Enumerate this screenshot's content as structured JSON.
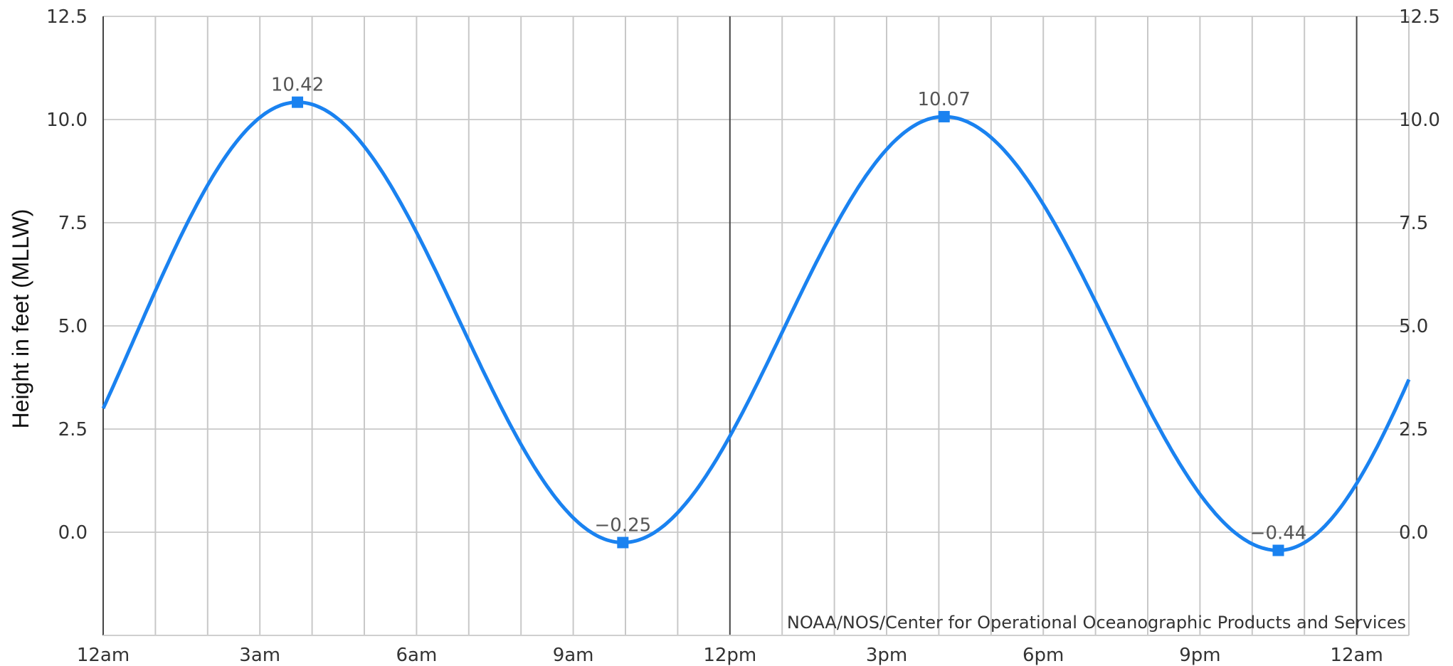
{
  "chart_data": {
    "type": "line",
    "ylabel": "Height in feet (MLLW)",
    "credit": "NOAA/NOS/Center for Operational Oceanographic Products and Services",
    "xlim_hours": [
      0,
      25
    ],
    "ylim": [
      -2.5,
      12.5
    ],
    "y_ticks": [
      0.0,
      2.5,
      5.0,
      7.5,
      10.0,
      12.5
    ],
    "y_tick_labels": [
      "0.0",
      "2.5",
      "5.0",
      "7.5",
      "10.0",
      "12.5"
    ],
    "x_ticks_hours": [
      0,
      3,
      6,
      9,
      12,
      15,
      18,
      21,
      24
    ],
    "x_tick_labels": [
      "12am",
      "3am",
      "6am",
      "9am",
      "12pm",
      "3pm",
      "6pm",
      "9pm",
      "12am"
    ],
    "grid": true,
    "series": [
      {
        "color": "#1a82f0",
        "extremes": [
          {
            "x_hours": 3.72,
            "value": 10.42,
            "label": "10.42"
          },
          {
            "x_hours": 9.95,
            "value": -0.25,
            "label": "−0.25"
          },
          {
            "x_hours": 16.1,
            "value": 10.07,
            "label": "10.07"
          },
          {
            "x_hours": 22.5,
            "value": -0.44,
            "label": "−0.44"
          }
        ],
        "start_value": 3.0,
        "end_value": 3.7
      }
    ]
  }
}
